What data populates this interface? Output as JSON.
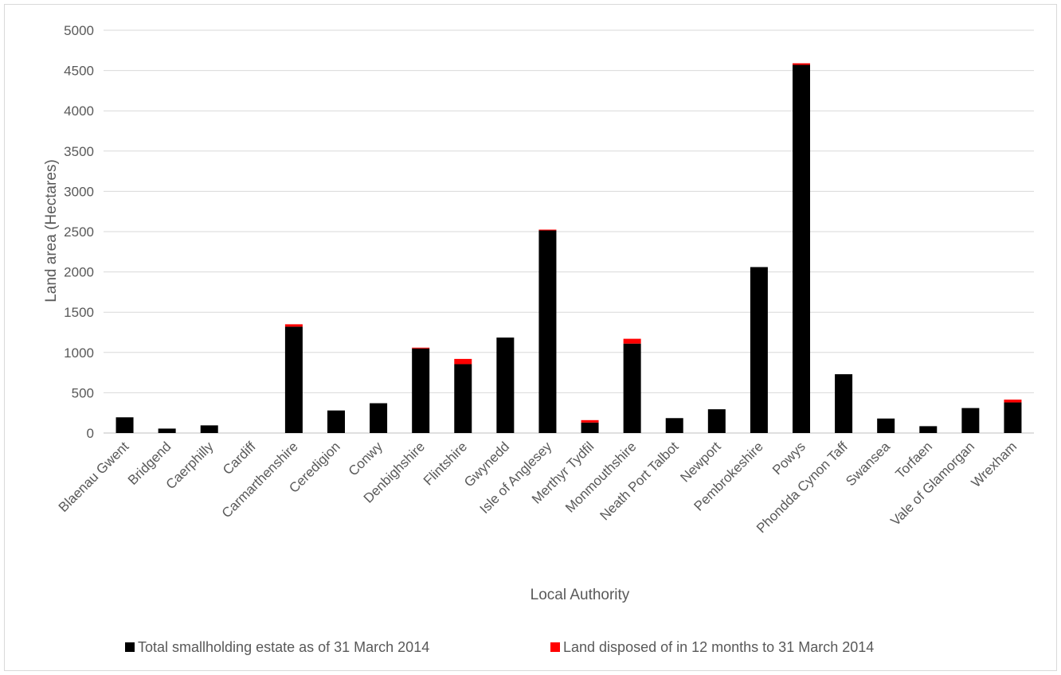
{
  "chart_data": {
    "type": "bar",
    "stacked": true,
    "title": "",
    "xlabel": "Local Authority",
    "ylabel": "Land area (Hectares)",
    "ylim": [
      0,
      5000
    ],
    "yticks": [
      "0",
      "500",
      "1000",
      "1500",
      "2000",
      "2500",
      "3000",
      "3500",
      "4000",
      "4500",
      "5000"
    ],
    "grid": true,
    "legend_position": "bottom",
    "categories": [
      "Blaenau Gwent",
      "Bridgend",
      "Caerphilly",
      "Cardiff",
      "Carmarthenshire",
      "Ceredigion",
      "Conwy",
      "Denbighshire",
      "Flintshire",
      "Gwynedd",
      "Isle of Anglesey",
      "Merthyr Tydfil",
      "Monmouthshire",
      "Neath Port Talbot",
      "Newport",
      "Pembrokeshire",
      "Powys",
      "Phondda Cynon Taff",
      "Swansea",
      "Torfaen",
      "Vale of Glamorgan",
      "Wrexham"
    ],
    "series": [
      {
        "name": "Total smallholding estate as of 31 March 2014",
        "color": "#000000",
        "values": [
          195,
          55,
          95,
          0,
          1320,
          280,
          370,
          1050,
          855,
          1185,
          2515,
          130,
          1110,
          185,
          295,
          2060,
          4570,
          730,
          180,
          85,
          310,
          380
        ]
      },
      {
        "name": "Land disposed of in 12 months to 31 March 2014",
        "color": "#ff0000",
        "values": [
          0,
          0,
          0,
          0,
          30,
          0,
          0,
          10,
          65,
          0,
          10,
          30,
          60,
          0,
          0,
          0,
          20,
          0,
          0,
          0,
          0,
          35
        ]
      }
    ]
  }
}
